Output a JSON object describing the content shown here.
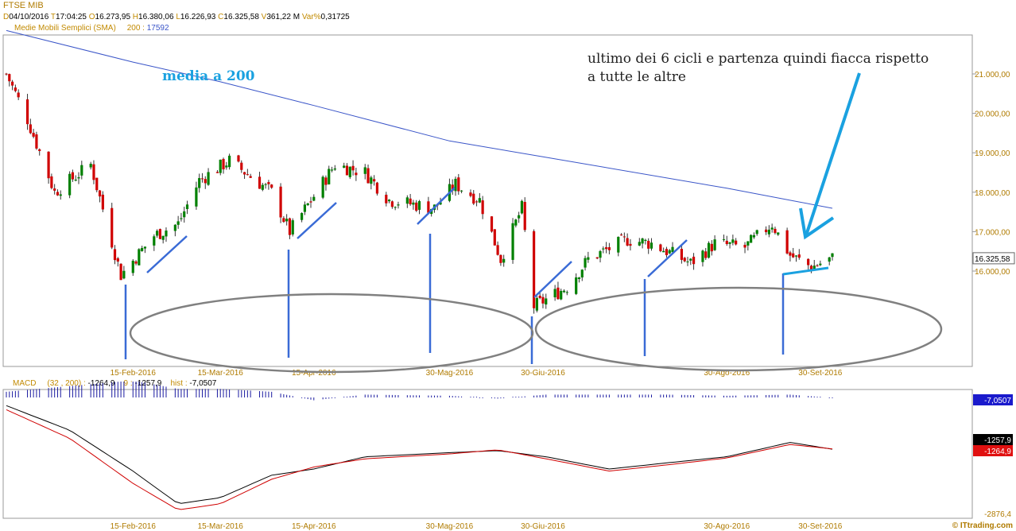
{
  "header": {
    "symbol": "FTSE MIB",
    "fields": [
      {
        "k": "D",
        "v": "04/10/2016"
      },
      {
        "k": "T",
        "v": "17:04:25"
      },
      {
        "k": "O",
        "v": "16.273,95"
      },
      {
        "k": "H",
        "v": "16.380,06"
      },
      {
        "k": "L",
        "v": "16.226,93"
      },
      {
        "k": "C",
        "v": "16.325,58"
      },
      {
        "k": "V",
        "v": "361,22 M"
      },
      {
        "k": "Var%",
        "v": "0,31725"
      }
    ],
    "sma_label": "Medie Mobili Semplici (SMA)",
    "sma_period": "200 :",
    "sma_value": "17592"
  },
  "macd_header": {
    "label": "MACD",
    "params": "(32 , 200) :",
    "macd_value": "-1264,9",
    "signal_key": "9 :",
    "signal_value": "-1257,9",
    "hist_key": "hist :",
    "hist_value": "-7,0507"
  },
  "annotations": {
    "sma_note": "media a 200",
    "cycle_note_line1": "ultimo dei 6 cicli e partenza quindi fiacca rispetto",
    "cycle_note_line2": "a tutte le altre"
  },
  "watermark": "© ITtrading.com",
  "colors": {
    "up": "#008000",
    "down": "#d00000",
    "sma": "#3a55c8",
    "annotation": "#1aa1e0",
    "cycle_lines": "#3a6bd6",
    "ellipse": "#808080",
    "macd_line": "#000000",
    "signal_line": "#d00000",
    "hist": "#1a1aa0"
  },
  "chart_data": [
    {
      "type": "candlestick",
      "title": "FTSE MIB",
      "x_labels": [
        "15-Feb-2016",
        "15-Mar-2016",
        "15-Apr-2016",
        "30-Mag-2016",
        "30-Giu-2016",
        "30-Ago-2016",
        "30-Set-2016"
      ],
      "y_ticks": [
        "21.000,00",
        "20.000,00",
        "19.000,00",
        "18.000,00",
        "17.000,00",
        "16.000,00"
      ],
      "last_price_label": "16.325,58",
      "ylim": [
        13600,
        22000
      ],
      "points": [
        {
          "date": "2016-01-04",
          "close": 21000
        },
        {
          "date": "2016-01-11",
          "close": 19850
        },
        {
          "date": "2016-01-20",
          "close": 18000
        },
        {
          "date": "2016-02-01",
          "close": 18700
        },
        {
          "date": "2016-02-11",
          "close": 15900
        },
        {
          "date": "2016-02-22",
          "close": 16900
        },
        {
          "date": "2016-03-01",
          "close": 17200
        },
        {
          "date": "2016-03-08",
          "close": 18300
        },
        {
          "date": "2016-03-18",
          "close": 18800
        },
        {
          "date": "2016-04-01",
          "close": 18000
        },
        {
          "date": "2016-04-07",
          "close": 17000
        },
        {
          "date": "2016-04-15",
          "close": 17900
        },
        {
          "date": "2016-04-22",
          "close": 18700
        },
        {
          "date": "2016-05-02",
          "close": 18500
        },
        {
          "date": "2016-05-10",
          "close": 17800
        },
        {
          "date": "2016-05-25",
          "close": 17600
        },
        {
          "date": "2016-06-01",
          "close": 18200
        },
        {
          "date": "2016-06-09",
          "close": 17800
        },
        {
          "date": "2016-06-16",
          "close": 16300
        },
        {
          "date": "2016-06-23",
          "close": 17600
        },
        {
          "date": "2016-06-27",
          "close": 15100
        },
        {
          "date": "2016-07-08",
          "close": 15600
        },
        {
          "date": "2016-07-15",
          "close": 16300
        },
        {
          "date": "2016-07-28",
          "close": 16800
        },
        {
          "date": "2016-08-05",
          "close": 16700
        },
        {
          "date": "2016-08-18",
          "close": 16200
        },
        {
          "date": "2016-08-26",
          "close": 16700
        },
        {
          "date": "2016-09-05",
          "close": 16600
        },
        {
          "date": "2016-09-14",
          "close": 17200
        },
        {
          "date": "2016-09-20",
          "close": 16400
        },
        {
          "date": "2016-09-27",
          "close": 16100
        },
        {
          "date": "2016-10-04",
          "close": 16325
        }
      ],
      "sma200": [
        {
          "date": "2016-01-04",
          "value": 22100
        },
        {
          "date": "2016-02-15",
          "value": 21300
        },
        {
          "date": "2016-03-15",
          "value": 20800
        },
        {
          "date": "2016-04-15",
          "value": 20200
        },
        {
          "date": "2016-05-30",
          "value": 19300
        },
        {
          "date": "2016-06-30",
          "value": 18900
        },
        {
          "date": "2016-08-30",
          "value": 18100
        },
        {
          "date": "2016-10-04",
          "value": 17592
        }
      ]
    },
    {
      "type": "line",
      "title": "MACD",
      "y_labels": [
        "-7,0507",
        "-1257,9",
        "-1264,9",
        "-2876,4"
      ],
      "series": [
        {
          "name": "MACD",
          "values": [
            {
              "date": "2016-01-04",
              "value": -200
            },
            {
              "date": "2016-01-25",
              "value": -800
            },
            {
              "date": "2016-02-15",
              "value": -1800
            },
            {
              "date": "2016-03-01",
              "value": -2600
            },
            {
              "date": "2016-03-15",
              "value": -2450
            },
            {
              "date": "2016-04-01",
              "value": -1900
            },
            {
              "date": "2016-04-15",
              "value": -1750
            },
            {
              "date": "2016-05-02",
              "value": -1450
            },
            {
              "date": "2016-05-30",
              "value": -1350
            },
            {
              "date": "2016-06-15",
              "value": -1300
            },
            {
              "date": "2016-07-01",
              "value": -1450
            },
            {
              "date": "2016-07-22",
              "value": -1750
            },
            {
              "date": "2016-08-10",
              "value": -1600
            },
            {
              "date": "2016-08-30",
              "value": -1450
            },
            {
              "date": "2016-09-20",
              "value": -1100
            },
            {
              "date": "2016-10-04",
              "value": -1264.9
            }
          ]
        },
        {
          "name": "9",
          "values": [
            {
              "date": "2016-01-04",
              "value": -300
            },
            {
              "date": "2016-01-25",
              "value": -1000
            },
            {
              "date": "2016-02-15",
              "value": -2100
            },
            {
              "date": "2016-03-01",
              "value": -2750
            },
            {
              "date": "2016-03-15",
              "value": -2600
            },
            {
              "date": "2016-04-01",
              "value": -2000
            },
            {
              "date": "2016-04-15",
              "value": -1700
            },
            {
              "date": "2016-05-02",
              "value": -1500
            },
            {
              "date": "2016-05-30",
              "value": -1380
            },
            {
              "date": "2016-06-15",
              "value": -1280
            },
            {
              "date": "2016-07-01",
              "value": -1500
            },
            {
              "date": "2016-07-22",
              "value": -1800
            },
            {
              "date": "2016-08-10",
              "value": -1650
            },
            {
              "date": "2016-08-30",
              "value": -1480
            },
            {
              "date": "2016-09-20",
              "value": -1150
            },
            {
              "date": "2016-10-04",
              "value": -1257.9
            }
          ]
        }
      ]
    }
  ]
}
